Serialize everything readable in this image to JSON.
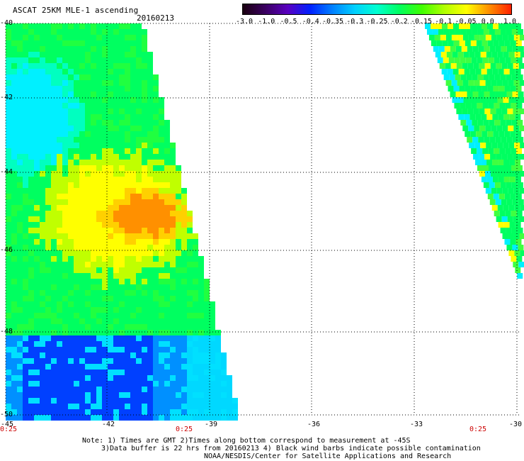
{
  "header": {
    "title": "ASCAT 25KM MLE-1 ascending",
    "date": "20160213"
  },
  "colorbar": {
    "labels": [
      "-3.0",
      "-1.0",
      "-0.5",
      "-0.4",
      "-0.35",
      "-0.3",
      "-0.25",
      "-0.2",
      "-0.15",
      "-0.1",
      "-0.05",
      "0.0",
      "1.0"
    ],
    "colors": [
      "#1a0010",
      "#3a0060",
      "#5a00c0",
      "#0020ff",
      "#0080ff",
      "#00d0ff",
      "#00ffd0",
      "#00ff60",
      "#40ff00",
      "#b0ff00",
      "#ffff00",
      "#ff9000",
      "#ff2000"
    ]
  },
  "map": {
    "lat_labels": [
      "-40",
      "-42",
      "-44",
      "-46",
      "-48",
      "-50"
    ],
    "lon_labels": [
      "-45",
      "-42",
      "-39",
      "-36",
      "-33",
      "-30"
    ],
    "time_labels": [
      "0:25",
      "0:25",
      "0:25"
    ]
  },
  "notes": {
    "line1": "Note: 1) Times are GMT 2)Times along bottom correspond to measurement at -45S",
    "line2": "3)Data buffer is 22 hrs from 20160213 4) Black wind barbs indicate possible contamination",
    "line3": "NOAA/NESDIS/Center for Satellite Applications and Research"
  }
}
